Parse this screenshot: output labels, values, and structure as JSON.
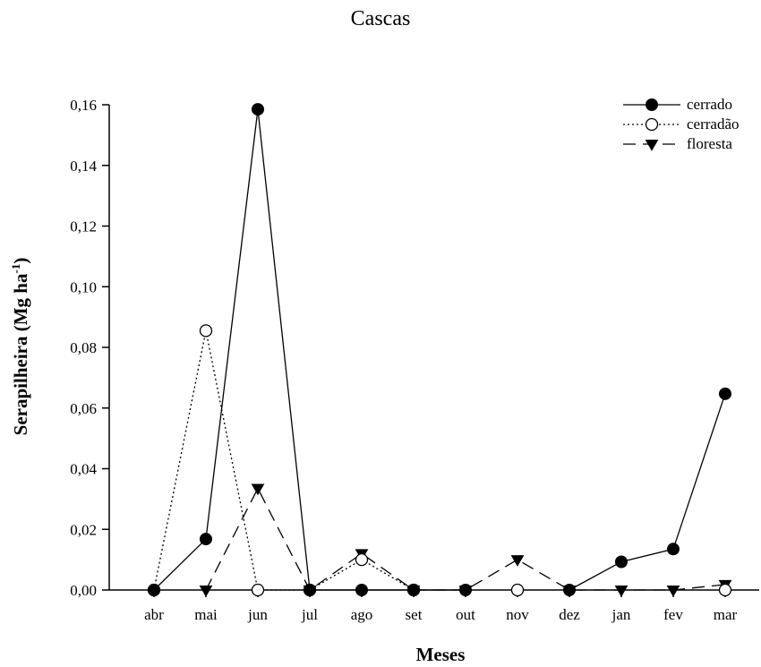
{
  "chart_data": {
    "type": "line",
    "title": "Cascas",
    "xlabel": "Meses",
    "ylabel": "Serapilheira (Mg ha",
    "ylabel_sup": "-1",
    "ylabel_end": ")",
    "categories": [
      "abr",
      "mai",
      "jun",
      "jul",
      "ago",
      "set",
      "out",
      "nov",
      "dez",
      "jan",
      "fev",
      "mar"
    ],
    "ylim": [
      0,
      0.16
    ],
    "yticks": [
      0,
      0.02,
      0.04,
      0.06,
      0.08,
      0.1,
      0.12,
      0.14,
      0.16
    ],
    "ytick_labels": [
      "0,00",
      "0,02",
      "0,04",
      "0,06",
      "0,08",
      "0,10",
      "0,12",
      "0,14",
      "0,16"
    ],
    "legend_position": "top-right",
    "grid": false,
    "series": [
      {
        "name": "cerrado",
        "marker": "filled-circle",
        "line": "solid",
        "values": [
          0,
          0.0168,
          0.1585,
          0,
          0,
          0,
          0,
          null,
          0,
          0.0093,
          0.0135,
          0.0647
        ]
      },
      {
        "name": "cerradão",
        "marker": "open-circle",
        "line": "dotted",
        "values": [
          0,
          0.0855,
          0,
          0,
          0.01,
          0,
          null,
          0,
          null,
          null,
          null,
          0
        ]
      },
      {
        "name": "floresta",
        "marker": "filled-triangle-down",
        "line": "dashed",
        "values": [
          null,
          0,
          0.0335,
          0,
          0.012,
          0,
          0,
          0.01,
          0,
          0,
          0,
          0.0018
        ]
      }
    ]
  }
}
